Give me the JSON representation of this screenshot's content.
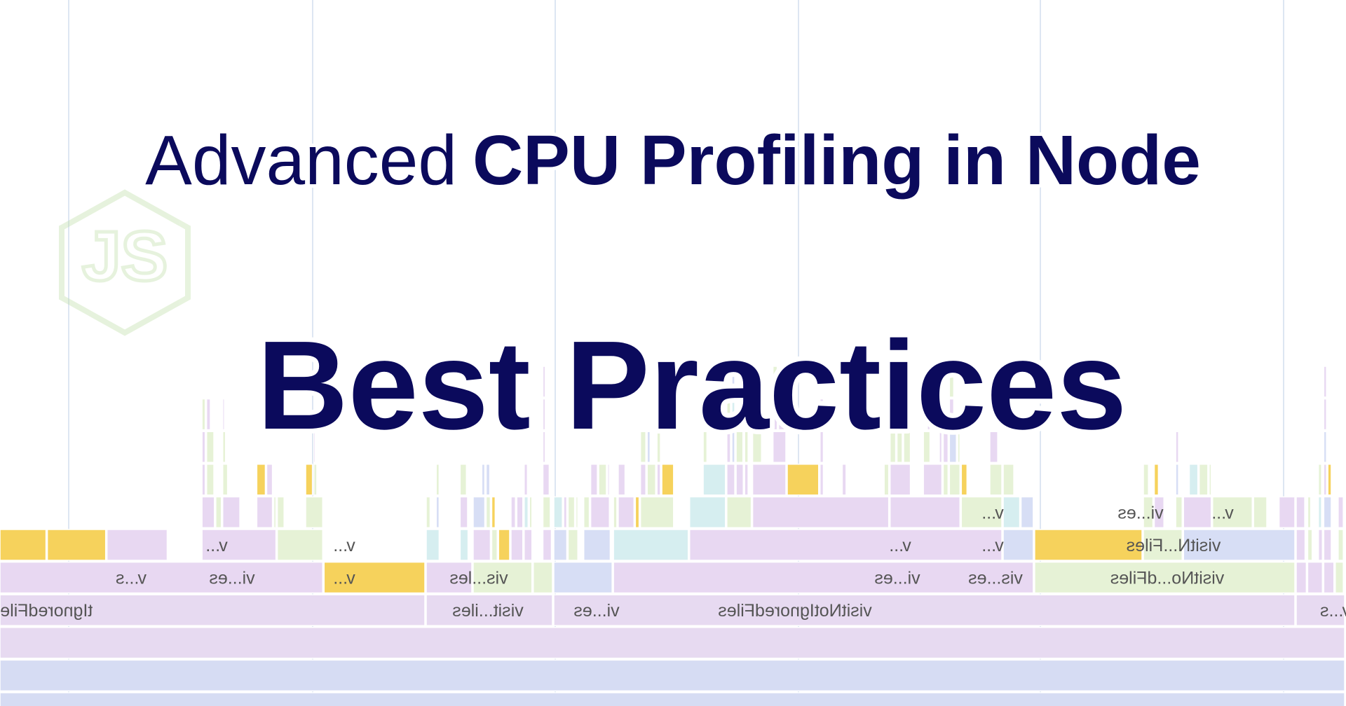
{
  "title": {
    "prefix": "Advanced",
    "emphasis": "CPU Profiling in Node"
  },
  "subtitle": "Best Practices",
  "logo_text": "JS",
  "flame_graph": {
    "rows": [
      [
        "tIgnoredFiles",
        "visit...iles",
        "vi...es",
        "visitNotIgnoredFiles",
        "v...s"
      ],
      [
        "v...s",
        "vi...es",
        "v...",
        "vis...les",
        "vi...es",
        "vis...es",
        "visitNo...dFiles"
      ],
      [
        "v...",
        "v...",
        "v...",
        "v...",
        "visitN...Files"
      ],
      [
        "v...",
        "vi...es",
        "v..."
      ]
    ]
  }
}
